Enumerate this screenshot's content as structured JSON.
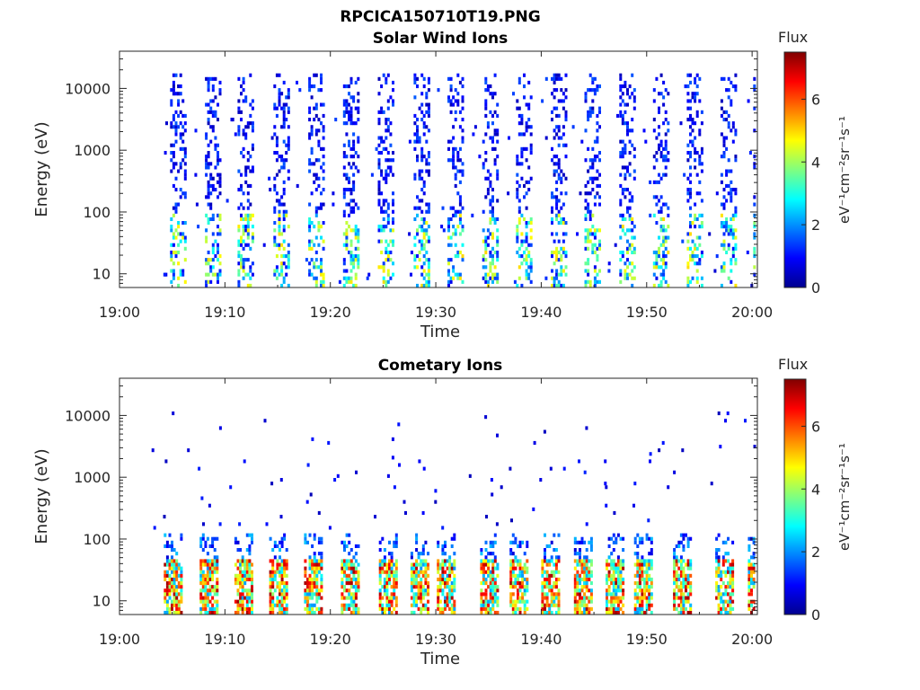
{
  "figure": {
    "file_title": "RPCICA150710T19.PNG"
  },
  "chart_data": [
    {
      "type": "heatmap",
      "title": "Solar Wind Ions",
      "xlabel": "Time",
      "ylabel": "Energy (eV)",
      "x_ticks": [
        "19:00",
        "19:10",
        "19:20",
        "19:30",
        "19:40",
        "19:50",
        "20:00"
      ],
      "x_range_minutes": [
        0,
        60.5
      ],
      "y_scale": "log",
      "y_range": [
        6,
        40000
      ],
      "y_ticks": [
        {
          "value": 10,
          "label": "10"
        },
        {
          "value": 100,
          "label": "100"
        },
        {
          "value": 1000,
          "label": "1000"
        },
        {
          "value": 10000,
          "label": "10000"
        }
      ],
      "colorbar": {
        "title": "Flux",
        "label": "eV⁻¹cm⁻²sr⁻¹s⁻¹",
        "range": [
          0,
          7.5
        ],
        "ticks": [
          0,
          2,
          4,
          6
        ]
      },
      "sweep_times_minutes": [
        4.8,
        8.1,
        11.2,
        14.6,
        17.9,
        21.2,
        24.5,
        27.9,
        31.1,
        34.4,
        37.6,
        40.9,
        44.1,
        47.4,
        50.6,
        53.8,
        57.0,
        60.1
      ],
      "low_energy_band_eV": [
        10,
        100
      ],
      "high_energy_band_eV": [
        100,
        20000
      ],
      "peak_flux": 5.0
    },
    {
      "type": "heatmap",
      "title": "Cometary Ions",
      "xlabel": "Time",
      "ylabel": "Energy (eV)",
      "x_ticks": [
        "19:00",
        "19:10",
        "19:20",
        "19:30",
        "19:40",
        "19:50",
        "20:00"
      ],
      "x_range_minutes": [
        0,
        60.5
      ],
      "y_scale": "log",
      "y_range": [
        6,
        40000
      ],
      "y_ticks": [
        {
          "value": 10,
          "label": "10"
        },
        {
          "value": 100,
          "label": "100"
        },
        {
          "value": 1000,
          "label": "1000"
        },
        {
          "value": 10000,
          "label": "10000"
        }
      ],
      "colorbar": {
        "title": "Flux",
        "label": "eV⁻¹cm⁻²sr⁻¹s⁻¹",
        "range": [
          0,
          7.5
        ],
        "ticks": [
          0,
          2,
          4,
          6
        ]
      },
      "sweep_times_minutes": [
        4.2,
        7.6,
        10.9,
        14.2,
        17.5,
        21.0,
        24.6,
        27.6,
        30.1,
        34.2,
        37.0,
        40.0,
        43.1,
        46.1,
        48.8,
        52.5,
        56.5,
        59.6
      ],
      "peak_band_eV": [
        10,
        45
      ],
      "peak_flux": 7.3
    }
  ]
}
